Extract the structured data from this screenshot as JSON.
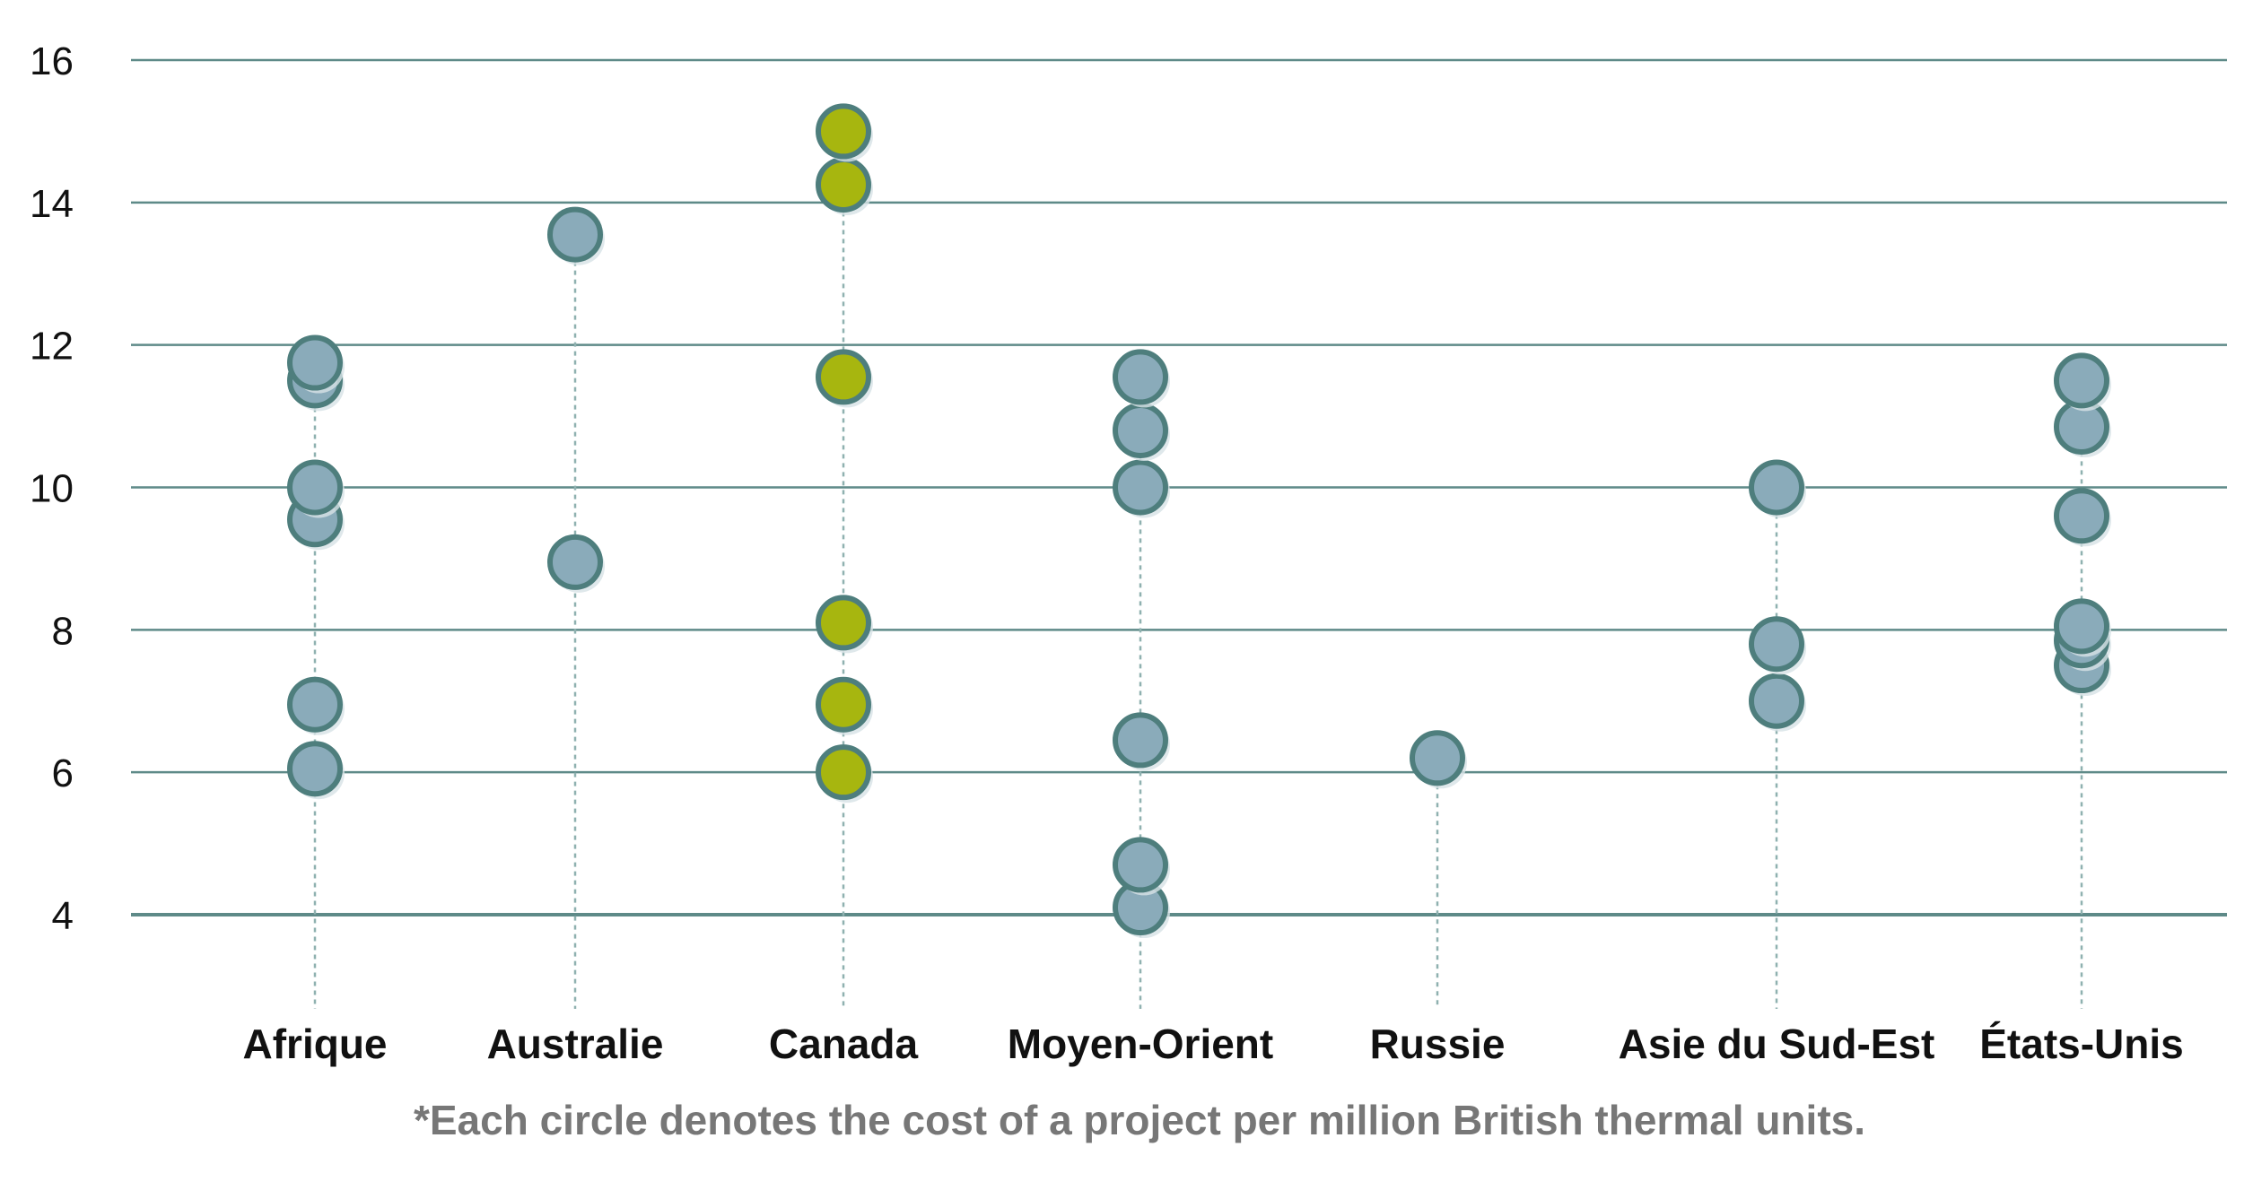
{
  "chart_data": {
    "type": "scatter",
    "ylim": [
      4,
      16
    ],
    "yticks": [
      4,
      6,
      8,
      10,
      12,
      14,
      16
    ],
    "grid": true,
    "categories": [
      "Afrique",
      "Australie",
      "Canada",
      "Moyen-Orient",
      "Russie",
      "Asie du Sud-Est",
      "États-Unis"
    ],
    "series": [
      {
        "category": "Afrique",
        "values": [
          6.05,
          6.95,
          9.55,
          10.0,
          11.5,
          11.75
        ],
        "highlight": false
      },
      {
        "category": "Australie",
        "values": [
          8.95,
          13.55
        ],
        "highlight": false
      },
      {
        "category": "Canada",
        "values": [
          6.0,
          6.95,
          8.1,
          11.55,
          14.25,
          15.0
        ],
        "highlight": true
      },
      {
        "category": "Moyen-Orient",
        "values": [
          4.1,
          4.7,
          6.45,
          10.0,
          10.8,
          11.55
        ],
        "highlight": false
      },
      {
        "category": "Russie",
        "values": [
          6.2
        ],
        "highlight": false
      },
      {
        "category": "Asie du Sud-Est",
        "values": [
          7.0,
          7.8,
          10.0
        ],
        "highlight": false
      },
      {
        "category": "États-Unis",
        "values": [
          7.5,
          7.85,
          8.05,
          9.6,
          10.85,
          11.5
        ],
        "highlight": false
      }
    ],
    "footnote": "*Each circle denotes the cost of a project per million British thermal units."
  },
  "colors": {
    "gridline": "#5e8a88",
    "dropline": "#8fb1b0",
    "marker_fill": "#8aabba",
    "marker_stroke": "#4e7e7d",
    "highlight_fill": "#a7b60f",
    "shadow": "#d7e2e6"
  }
}
